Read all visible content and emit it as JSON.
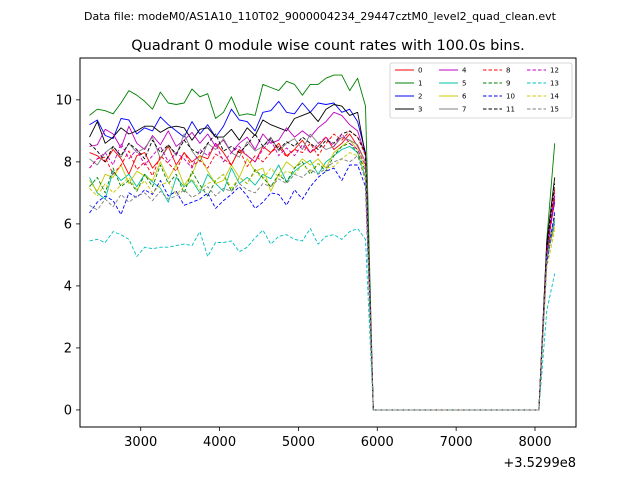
{
  "figure": {
    "suptitle": "Data file: modeM0/AS1A10_110T02_9000004234_29447cztM0_level2_quad_clean.evt",
    "title": "Quadrant 0 module wise count rates with 100.0s bins.",
    "offset_label": "+3.5299e8"
  },
  "chart_data": {
    "type": "line",
    "title": "Quadrant 0 module wise count rates with 100.0s bins.",
    "xlabel": "",
    "ylabel": "",
    "x_offset": 352990000,
    "xlim": [
      2230,
      8520
    ],
    "ylim": [
      -0.55,
      11.35
    ],
    "xticks": [
      3000,
      4000,
      5000,
      6000,
      7000,
      8000
    ],
    "yticks": [
      0,
      2,
      4,
      6,
      8,
      10
    ],
    "x": [
      2350,
      2450,
      2550,
      2650,
      2750,
      2850,
      2950,
      3050,
      3150,
      3250,
      3350,
      3450,
      3550,
      3650,
      3750,
      3850,
      3950,
      4050,
      4150,
      4250,
      4350,
      4450,
      4550,
      4650,
      4750,
      4850,
      4950,
      5050,
      5150,
      5250,
      5350,
      5450,
      5550,
      5650,
      5750,
      5850,
      5950,
      6050,
      8050,
      8150,
      8250
    ],
    "legend_position": "upper right",
    "series": [
      {
        "name": "0",
        "color": "#ff0000",
        "dash": "solid",
        "values": [
          8.3,
          8.2,
          8.0,
          8.4,
          8.1,
          7.6,
          8.2,
          8.3,
          7.8,
          8.1,
          8.5,
          7.9,
          8.3,
          8.0,
          8.2,
          8.1,
          8.6,
          8.3,
          7.9,
          8.4,
          8.2,
          8.0,
          8.5,
          8.3,
          8.6,
          8.2,
          8.4,
          8.7,
          8.3,
          8.5,
          8.8,
          8.4,
          8.6,
          8.9,
          8.5,
          8.0,
          0.0,
          0.0,
          0.0,
          5.0,
          7.1
        ]
      },
      {
        "name": "1",
        "color": "#008000",
        "dash": "solid",
        "values": [
          9.5,
          9.7,
          9.65,
          9.55,
          9.9,
          10.3,
          10.15,
          9.95,
          9.7,
          10.25,
          9.9,
          9.85,
          9.9,
          10.35,
          10.1,
          10.2,
          9.4,
          9.6,
          10.1,
          9.5,
          9.55,
          9.5,
          10.5,
          10.4,
          10.3,
          10.6,
          10.5,
          10.15,
          10.5,
          10.5,
          10.7,
          10.8,
          10.8,
          10.3,
          10.7,
          9.8,
          0.0,
          0.0,
          0.0,
          5.5,
          8.6
        ]
      },
      {
        "name": "2",
        "color": "#0000ff",
        "dash": "solid",
        "values": [
          9.2,
          9.35,
          8.85,
          8.75,
          9.4,
          9.35,
          8.9,
          9.1,
          9.0,
          9.45,
          9.2,
          9.0,
          8.8,
          9.3,
          8.9,
          9.2,
          8.8,
          9.15,
          9.7,
          9.35,
          9.3,
          9.0,
          9.6,
          9.65,
          9.95,
          9.6,
          9.55,
          9.9,
          9.6,
          9.9,
          9.85,
          9.9,
          9.6,
          9.7,
          9.3,
          8.3,
          0.0,
          0.0,
          0.0,
          5.3,
          6.7
        ]
      },
      {
        "name": "3",
        "color": "#000000",
        "dash": "solid",
        "values": [
          8.8,
          9.3,
          8.6,
          8.8,
          9.1,
          8.9,
          9.0,
          9.15,
          9.15,
          8.95,
          9.1,
          9.15,
          9.1,
          8.7,
          9.05,
          9.1,
          8.8,
          8.8,
          9.05,
          8.7,
          9.1,
          8.85,
          9.35,
          9.2,
          9.1,
          9.0,
          9.4,
          9.5,
          9.6,
          9.3,
          9.7,
          9.85,
          9.8,
          9.5,
          9.6,
          8.2,
          0.0,
          0.0,
          0.0,
          5.4,
          7.5
        ]
      },
      {
        "name": "4",
        "color": "#c000c0",
        "dash": "solid",
        "values": [
          8.5,
          8.55,
          9.05,
          8.9,
          8.45,
          9.15,
          8.6,
          8.4,
          8.85,
          8.55,
          9.0,
          8.5,
          8.7,
          8.95,
          8.6,
          8.9,
          8.5,
          8.7,
          8.3,
          8.6,
          8.8,
          8.4,
          8.9,
          8.6,
          8.7,
          9.1,
          8.8,
          9.0,
          8.8,
          9.1,
          9.3,
          9.6,
          9.5,
          9.2,
          9.0,
          8.2,
          0.0,
          0.0,
          0.0,
          5.2,
          6.9
        ]
      },
      {
        "name": "5",
        "color": "#00c0a0",
        "dash": "solid",
        "values": [
          7.5,
          7.0,
          6.8,
          7.7,
          7.4,
          7.6,
          7.2,
          7.6,
          7.35,
          7.15,
          6.7,
          7.5,
          7.2,
          7.4,
          7.0,
          7.6,
          7.3,
          7.05,
          7.8,
          7.3,
          7.5,
          7.25,
          7.6,
          7.45,
          7.9,
          7.35,
          7.7,
          7.9,
          8.05,
          7.6,
          8.0,
          8.2,
          8.4,
          8.5,
          8.3,
          7.5,
          0.0,
          0.0,
          0.0,
          4.8,
          6.1
        ]
      },
      {
        "name": "6",
        "color": "#c8c800",
        "dash": "solid",
        "values": [
          7.4,
          7.05,
          7.6,
          7.5,
          7.9,
          7.3,
          7.7,
          7.55,
          7.4,
          8.0,
          7.45,
          7.9,
          7.25,
          7.6,
          8.2,
          7.7,
          7.3,
          7.4,
          7.9,
          7.5,
          8.1,
          7.7,
          7.8,
          7.05,
          7.6,
          8.0,
          7.8,
          8.1,
          7.9,
          8.1,
          7.8,
          8.3,
          8.5,
          8.7,
          8.4,
          7.8,
          0.0,
          0.0,
          0.0,
          5.0,
          5.9
        ]
      },
      {
        "name": "7",
        "color": "#808080",
        "dash": "solid",
        "values": [
          8.1,
          7.9,
          8.3,
          8.5,
          8.15,
          8.6,
          8.3,
          8.45,
          8.8,
          8.1,
          8.55,
          8.2,
          8.9,
          8.35,
          8.0,
          8.6,
          8.4,
          8.75,
          8.3,
          8.15,
          8.65,
          8.35,
          8.5,
          8.8,
          8.35,
          8.6,
          8.75,
          8.4,
          8.9,
          8.6,
          8.4,
          8.5,
          8.8,
          8.7,
          8.55,
          8.0,
          0.0,
          0.0,
          0.0,
          5.1,
          6.2
        ]
      },
      {
        "name": "8",
        "color": "#ff0000",
        "dash": "dashed",
        "values": [
          7.8,
          8.1,
          8.15,
          7.6,
          7.9,
          8.35,
          7.75,
          8.0,
          7.55,
          8.2,
          7.95,
          7.7,
          8.3,
          7.85,
          8.05,
          7.8,
          8.25,
          8.1,
          7.9,
          8.4,
          7.85,
          8.2,
          8.0,
          8.3,
          8.5,
          8.15,
          8.4,
          8.3,
          8.6,
          8.2,
          8.6,
          8.9,
          8.7,
          9.0,
          8.8,
          8.2,
          0.0,
          0.0,
          0.0,
          5.0,
          6.8
        ]
      },
      {
        "name": "9",
        "color": "#008000",
        "dash": "dashed",
        "values": [
          7.2,
          7.5,
          7.0,
          7.8,
          7.2,
          7.4,
          7.05,
          7.6,
          7.2,
          7.9,
          7.3,
          7.6,
          7.0,
          7.7,
          7.25,
          6.9,
          7.4,
          7.6,
          7.05,
          7.5,
          7.3,
          7.75,
          7.5,
          7.2,
          7.6,
          7.35,
          7.8,
          8.0,
          7.6,
          7.95,
          7.7,
          8.2,
          8.5,
          8.6,
          8.3,
          7.7,
          0.0,
          0.0,
          0.0,
          5.0,
          6.3
        ]
      },
      {
        "name": "10",
        "color": "#0000ff",
        "dash": "dashed",
        "values": [
          6.35,
          6.7,
          6.9,
          6.75,
          6.3,
          7.0,
          6.85,
          7.1,
          6.95,
          7.4,
          6.9,
          7.05,
          6.6,
          6.7,
          6.8,
          7.0,
          6.5,
          6.75,
          6.95,
          7.2,
          6.9,
          6.5,
          6.7,
          7.0,
          6.95,
          6.6,
          7.1,
          6.8,
          7.2,
          7.5,
          7.7,
          7.8,
          7.4,
          7.9,
          7.9,
          7.2,
          0.0,
          0.0,
          0.0,
          4.7,
          6.4
        ]
      },
      {
        "name": "11",
        "color": "#000000",
        "dash": "dashed",
        "values": [
          8.6,
          8.35,
          8.0,
          8.5,
          8.2,
          8.6,
          8.4,
          8.1,
          8.7,
          8.3,
          8.55,
          8.25,
          8.7,
          8.4,
          8.25,
          8.6,
          8.9,
          8.35,
          8.5,
          8.3,
          8.55,
          8.9,
          8.5,
          8.75,
          8.4,
          8.65,
          8.5,
          8.8,
          8.6,
          8.4,
          8.7,
          8.6,
          8.9,
          9.0,
          8.8,
          8.3,
          0.0,
          0.0,
          0.0,
          5.2,
          7.3
        ]
      },
      {
        "name": "12",
        "color": "#c000c0",
        "dash": "dashed",
        "values": [
          7.8,
          8.1,
          8.3,
          7.9,
          8.6,
          8.1,
          8.4,
          7.9,
          8.2,
          8.5,
          8.0,
          8.3,
          8.1,
          7.8,
          8.4,
          8.2,
          8.6,
          8.0,
          8.3,
          8.5,
          8.2,
          8.0,
          8.4,
          8.7,
          8.2,
          8.45,
          8.2,
          8.55,
          8.3,
          8.6,
          8.8,
          8.5,
          8.9,
          8.6,
          8.4,
          7.9,
          0.0,
          0.0,
          0.0,
          5.0,
          7.0
        ]
      },
      {
        "name": "13",
        "color": "#00c0c0",
        "dash": "dashed",
        "values": [
          5.45,
          5.5,
          5.4,
          5.75,
          5.65,
          5.5,
          4.95,
          5.25,
          5.2,
          5.25,
          5.25,
          5.3,
          5.35,
          5.3,
          5.75,
          4.95,
          5.4,
          5.4,
          5.45,
          5.1,
          5.25,
          5.55,
          5.8,
          5.35,
          5.6,
          5.65,
          5.5,
          5.45,
          5.85,
          5.35,
          5.6,
          5.65,
          5.5,
          5.75,
          5.85,
          5.5,
          0.0,
          0.0,
          0.0,
          3.2,
          4.4
        ]
      },
      {
        "name": "14",
        "color": "#c8c800",
        "dash": "dashed",
        "values": [
          7.15,
          6.9,
          7.3,
          7.0,
          7.25,
          7.5,
          7.1,
          7.4,
          7.0,
          7.25,
          7.35,
          6.95,
          7.2,
          7.45,
          7.1,
          7.3,
          7.4,
          7.6,
          7.15,
          7.5,
          7.3,
          7.7,
          7.45,
          7.8,
          7.5,
          7.7,
          7.6,
          7.9,
          7.7,
          7.95,
          7.8,
          7.85,
          8.1,
          8.3,
          8.2,
          7.6,
          0.0,
          0.0,
          0.0,
          4.6,
          5.8
        ]
      },
      {
        "name": "15",
        "color": "#808080",
        "dash": "dashed",
        "values": [
          6.6,
          6.45,
          6.8,
          6.55,
          6.95,
          6.7,
          6.9,
          7.0,
          6.75,
          7.05,
          6.8,
          6.9,
          7.1,
          6.85,
          7.0,
          7.2,
          6.9,
          7.15,
          7.05,
          7.3,
          7.1,
          7.0,
          7.3,
          7.2,
          7.45,
          7.3,
          7.6,
          7.5,
          7.75,
          7.6,
          7.8,
          8.0,
          8.1,
          8.0,
          8.2,
          7.4,
          0.0,
          0.0,
          0.0,
          4.9,
          6.0
        ]
      }
    ]
  }
}
